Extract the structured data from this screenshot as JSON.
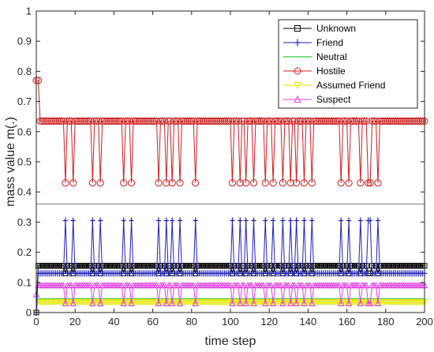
{
  "chart_data": {
    "type": "line",
    "xlabel": "time step",
    "ylabel": "mass value m(.)",
    "xlim": [
      0,
      200
    ],
    "ylim": [
      0,
      1
    ],
    "xticks": [
      "0",
      "20",
      "40",
      "60",
      "80",
      "100",
      "120",
      "140",
      "160",
      "180",
      "200"
    ],
    "yticks": [
      "0",
      "0.1",
      "0.2",
      "0.3",
      "0.4",
      "0.5",
      "0.6",
      "0.7",
      "0.8",
      "0.9",
      "1"
    ],
    "grid": false,
    "legend_position": "top-right",
    "step_count": 200,
    "dip_pairs": [
      [
        15,
        19
      ],
      [
        29,
        33
      ],
      [
        45,
        49
      ],
      [
        63,
        67
      ],
      [
        70,
        74
      ],
      [
        82,
        82
      ],
      [
        101,
        105
      ],
      [
        108,
        112
      ],
      [
        118,
        122
      ],
      [
        127,
        131
      ],
      [
        134,
        138
      ],
      [
        142,
        142
      ],
      [
        157,
        161
      ],
      [
        167,
        171
      ],
      [
        172,
        176
      ]
    ],
    "reference_line_y": 0.36,
    "series": [
      {
        "name": "Unknown",
        "color": "#000000",
        "marker": "square",
        "initial": 0.0,
        "base": 0.155,
        "dip": 0.13
      },
      {
        "name": "Friend",
        "color": "#1f1fb4",
        "marker": "plus",
        "initial": 0.0,
        "base": 0.13,
        "dip": 0.305
      },
      {
        "name": "Neutral",
        "color": "#00b400",
        "marker": "none",
        "initial": 0.0,
        "base": 0.045,
        "dip": 0.045
      },
      {
        "name": "Hostile",
        "color": "#cc2020",
        "marker": "circle",
        "initial": 0.77,
        "base": 0.635,
        "dip": 0.43
      },
      {
        "name": "Assumed Friend",
        "color": "#e6e600",
        "marker": "triangle-down",
        "initial": 0.0,
        "base": 0.035,
        "dip": 0.03
      },
      {
        "name": "Suspect",
        "color": "#e040e0",
        "marker": "triangle-up",
        "initial": 0.06,
        "base": 0.09,
        "dip": 0.03
      }
    ]
  }
}
